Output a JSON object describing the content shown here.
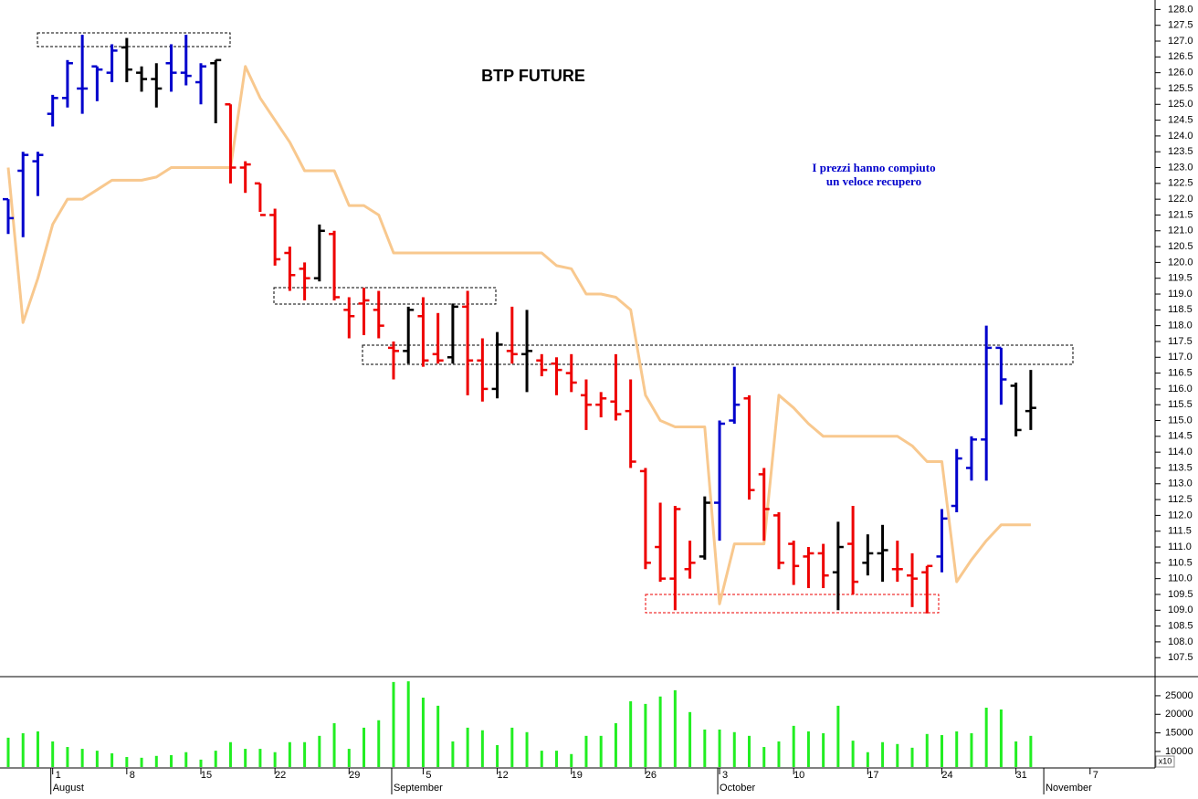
{
  "chart_data": {
    "type": "ohlc",
    "title": "BTP FUTURE",
    "annotation": [
      "I prezzi hanno compiuto",
      "un veloce recupero"
    ],
    "categories": [
      null,
      null,
      null,
      "1",
      null,
      null,
      null,
      null,
      "8",
      null,
      null,
      null,
      null,
      "15",
      null,
      null,
      null,
      null,
      "22",
      null,
      null,
      null,
      null,
      "29",
      null,
      null,
      null,
      null,
      "5",
      null,
      null,
      null,
      null,
      "12",
      null,
      null,
      null,
      null,
      "19",
      null,
      null,
      null,
      null,
      "26",
      null,
      null,
      null,
      null,
      "3",
      null,
      null,
      null,
      null,
      "10",
      null,
      null,
      null,
      null,
      "17",
      null,
      null,
      null,
      null,
      "24",
      null,
      null,
      null,
      null,
      "31",
      null,
      null,
      null,
      null,
      "7"
    ],
    "months": [
      null,
      null,
      null,
      "August",
      null,
      null,
      null,
      null,
      null,
      null,
      null,
      null,
      null,
      null,
      null,
      null,
      null,
      null,
      null,
      null,
      null,
      null,
      null,
      null,
      null,
      null,
      "September",
      null,
      null,
      null,
      null,
      null,
      null,
      null,
      null,
      null,
      null,
      null,
      null,
      null,
      null,
      null,
      null,
      null,
      null,
      null,
      null,
      null,
      "October",
      null,
      null,
      null,
      null,
      null,
      null,
      null,
      null,
      null,
      null,
      null,
      null,
      null,
      null,
      null,
      null,
      null,
      null,
      null,
      null,
      null,
      "November",
      null,
      null,
      null,
      null
    ],
    "open": [
      122.0,
      122.9,
      123.2,
      124.7,
      125.2,
      125.5,
      126.2,
      126.0,
      126.8,
      126.0,
      125.8,
      126.3,
      126.0,
      125.7,
      126.3,
      125.0,
      123.0,
      122.5,
      121.5,
      120.3,
      119.8,
      119.5,
      120.9,
      118.5,
      118.7,
      118.5,
      117.3,
      117.2,
      118.3,
      117.1,
      117.0,
      118.6,
      116.9,
      116.0,
      117.2,
      117.1,
      116.9,
      116.8,
      116.5,
      115.8,
      115.5,
      115.6,
      115.3,
      113.4,
      111.0,
      110.0,
      110.3,
      110.7,
      112.4,
      115.0,
      115.7,
      113.3,
      112.0,
      111.1,
      110.7,
      110.8,
      110.2,
      111.1,
      110.5,
      110.8,
      110.3,
      110.1,
      110.2,
      110.7,
      112.3,
      113.5,
      114.4,
      117.3,
      116.1,
      115.3,
      null,
      null,
      null,
      null
    ],
    "high": [
      122.0,
      123.5,
      123.5,
      125.3,
      126.4,
      127.2,
      126.2,
      126.9,
      127.1,
      126.2,
      126.3,
      126.9,
      127.2,
      126.3,
      126.4,
      125.0,
      123.2,
      122.5,
      121.7,
      120.5,
      120.0,
      121.2,
      121.0,
      118.9,
      119.2,
      119.1,
      117.5,
      118.6,
      118.9,
      118.4,
      118.7,
      119.1,
      117.6,
      117.8,
      118.6,
      118.5,
      117.1,
      117.0,
      117.1,
      116.3,
      115.9,
      117.1,
      116.3,
      113.5,
      112.4,
      112.3,
      111.2,
      112.6,
      115.0,
      116.7,
      115.8,
      113.5,
      112.1,
      111.2,
      111.0,
      111.1,
      111.8,
      112.3,
      111.4,
      111.7,
      111.2,
      110.8,
      110.4,
      112.2,
      114.1,
      114.5,
      118.0,
      117.3,
      116.2,
      116.6,
      null,
      null,
      null,
      null
    ],
    "low": [
      120.9,
      120.8,
      122.1,
      124.3,
      124.9,
      124.7,
      125.1,
      125.7,
      125.7,
      125.4,
      124.9,
      125.4,
      125.6,
      125.0,
      124.4,
      122.5,
      122.2,
      121.6,
      119.9,
      119.1,
      118.8,
      119.4,
      118.8,
      117.6,
      117.7,
      117.6,
      116.3,
      116.8,
      116.7,
      116.8,
      116.8,
      115.8,
      115.6,
      115.7,
      116.8,
      115.9,
      116.4,
      115.8,
      115.9,
      114.7,
      115.1,
      115.0,
      113.5,
      110.3,
      109.9,
      109.0,
      110.0,
      110.6,
      111.2,
      114.9,
      112.5,
      111.2,
      110.3,
      109.8,
      109.7,
      109.7,
      109.0,
      109.5,
      110.1,
      109.9,
      109.9,
      109.1,
      108.9,
      110.2,
      112.1,
      113.1,
      113.1,
      115.5,
      114.5,
      114.7,
      null,
      null,
      null,
      null
    ],
    "close": [
      121.4,
      123.4,
      123.4,
      125.2,
      126.3,
      125.5,
      126.1,
      126.7,
      126.1,
      125.8,
      125.5,
      126.0,
      125.9,
      126.2,
      126.4,
      123.0,
      123.1,
      121.5,
      120.1,
      119.6,
      119.5,
      121.0,
      118.9,
      118.3,
      118.8,
      118.0,
      117.2,
      118.5,
      116.9,
      116.9,
      118.6,
      116.9,
      116.0,
      117.4,
      117.1,
      117.2,
      116.6,
      116.6,
      116.2,
      115.5,
      115.7,
      115.2,
      113.7,
      110.5,
      110.0,
      112.2,
      110.5,
      112.4,
      114.9,
      115.5,
      112.8,
      112.2,
      110.5,
      110.4,
      110.8,
      110.1,
      111.0,
      109.9,
      110.8,
      110.9,
      110.3,
      110.0,
      110.4,
      111.9,
      113.8,
      114.4,
      117.3,
      116.3,
      114.7,
      115.4,
      null,
      null,
      null,
      null
    ],
    "bar_colors": [
      "#0000cc",
      "#0000cc",
      "#0000cc",
      "#0000cc",
      "#0000cc",
      "#0000cc",
      "#0000cc",
      "#0000cc",
      "#000000",
      "#000000",
      "#000000",
      "#0000cc",
      "#0000cc",
      "#0000cc",
      "#000000",
      "#ee0000",
      "#ee0000",
      "#ee0000",
      "#ee0000",
      "#ee0000",
      "#ee0000",
      "#000000",
      "#ee0000",
      "#ee0000",
      "#ee0000",
      "#ee0000",
      "#ee0000",
      "#000000",
      "#ee0000",
      "#ee0000",
      "#000000",
      "#ee0000",
      "#ee0000",
      "#000000",
      "#ee0000",
      "#000000",
      "#ee0000",
      "#ee0000",
      "#ee0000",
      "#ee0000",
      "#ee0000",
      "#ee0000",
      "#ee0000",
      "#ee0000",
      "#ee0000",
      "#ee0000",
      "#ee0000",
      "#000000",
      "#0000cc",
      "#0000cc",
      "#ee0000",
      "#ee0000",
      "#ee0000",
      "#ee0000",
      "#ee0000",
      "#ee0000",
      "#000000",
      "#ee0000",
      "#000000",
      "#000000",
      "#ee0000",
      "#ee0000",
      "#ee0000",
      "#0000cc",
      "#0000cc",
      "#0000cc",
      "#0000cc",
      "#0000cc",
      "#000000",
      "#000000",
      null,
      null,
      null,
      null
    ],
    "line": {
      "color": "#f8c88e",
      "values": [
        123.0,
        118.1,
        119.5,
        121.2,
        122.0,
        122.0,
        122.3,
        122.6,
        122.6,
        122.6,
        122.7,
        123.0,
        123.0,
        123.0,
        123.0,
        123.0,
        126.2,
        125.2,
        124.5,
        123.8,
        122.9,
        122.9,
        122.9,
        121.8,
        121.8,
        121.5,
        120.3,
        120.3,
        120.3,
        120.3,
        120.3,
        120.3,
        120.3,
        120.3,
        120.3,
        120.3,
        120.3,
        119.9,
        119.8,
        119.0,
        119.0,
        118.9,
        118.5,
        115.8,
        115.0,
        114.8,
        114.8,
        114.8,
        109.2,
        111.1,
        111.1,
        111.1,
        115.8,
        115.4,
        114.9,
        114.5,
        114.5,
        114.5,
        114.5,
        114.5,
        114.5,
        114.2,
        113.7,
        113.7,
        109.9,
        110.6,
        111.2,
        111.7,
        111.7,
        111.7,
        null,
        null,
        null,
        null
      ]
    },
    "ylim": [
      106.9,
      128.3
    ],
    "yticks": [
      {
        "value": 107.5,
        "label": "107.5"
      },
      {
        "value": 108,
        "label": "108.0"
      },
      {
        "value": 108.5,
        "label": "108.5"
      },
      {
        "value": 109,
        "label": "109.0"
      },
      {
        "value": 109.5,
        "label": "109.5"
      },
      {
        "value": 110,
        "label": "110.0"
      },
      {
        "value": 110.5,
        "label": "110.5"
      },
      {
        "value": 111,
        "label": "111.0"
      },
      {
        "value": 111.5,
        "label": "111.5"
      },
      {
        "value": 112,
        "label": "112.0"
      },
      {
        "value": 112.5,
        "label": "112.5"
      },
      {
        "value": 113,
        "label": "113.0"
      },
      {
        "value": 113.5,
        "label": "113.5"
      },
      {
        "value": 114,
        "label": "114.0"
      },
      {
        "value": 114.5,
        "label": "114.5"
      },
      {
        "value": 115,
        "label": "115.0"
      },
      {
        "value": 115.5,
        "label": "115.5"
      },
      {
        "value": 116,
        "label": "116.0"
      },
      {
        "value": 116.5,
        "label": "116.5"
      },
      {
        "value": 117,
        "label": "117.0"
      },
      {
        "value": 117.5,
        "label": "117.5"
      },
      {
        "value": 118,
        "label": "118.0"
      },
      {
        "value": 118.5,
        "label": "118.5"
      },
      {
        "value": 119,
        "label": "119.0"
      },
      {
        "value": 119.5,
        "label": "119.5"
      },
      {
        "value": 120,
        "label": "120.0"
      },
      {
        "value": 120.5,
        "label": "120.5"
      },
      {
        "value": 121,
        "label": "121.0"
      },
      {
        "value": 121.5,
        "label": "121.5"
      },
      {
        "value": 122,
        "label": "122.0"
      },
      {
        "value": 122.5,
        "label": "122.5"
      },
      {
        "value": 123,
        "label": "123.0"
      },
      {
        "value": 123.5,
        "label": "123.5"
      },
      {
        "value": 124,
        "label": "124.0"
      },
      {
        "value": 124.5,
        "label": "124.5"
      },
      {
        "value": 125,
        "label": "125.0"
      },
      {
        "value": 125.5,
        "label": "125.5"
      },
      {
        "value": 126,
        "label": "126.0"
      },
      {
        "value": 126.5,
        "label": "126.5"
      },
      {
        "value": 127,
        "label": "127.0"
      },
      {
        "value": 127.5,
        "label": "127.5"
      },
      {
        "value": 128,
        "label": "128.0"
      }
    ],
    "volume": {
      "color": "#22ee22",
      "unit_label": "x10",
      "values": [
        13700,
        14900,
        15400,
        12700,
        11200,
        10700,
        10200,
        9500,
        8500,
        8300,
        8800,
        9000,
        9800,
        7800,
        10200,
        12500,
        10700,
        10700,
        9800,
        12500,
        12500,
        14200,
        17600,
        10700,
        16400,
        18400,
        28700,
        28900,
        24500,
        22300,
        12700,
        16400,
        15700,
        11700,
        16400,
        15200,
        10200,
        10200,
        9300,
        14200,
        14200,
        17600,
        23500,
        22800,
        24800,
        26500,
        20600,
        15900,
        15900,
        15200,
        14200,
        11200,
        12700,
        16900,
        15400,
        14900,
        22300,
        12900,
        9800,
        12500,
        12000,
        11000,
        14700,
        14400,
        15400,
        14900,
        21800,
        21300,
        12700,
        14200,
        null,
        null,
        null,
        null
      ],
      "ylim": [
        5800,
        29900
      ],
      "yticks": [
        10000,
        15000,
        20000,
        25000
      ]
    }
  }
}
